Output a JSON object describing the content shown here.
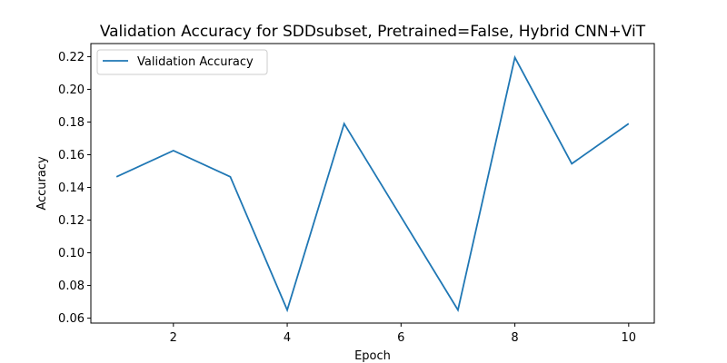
{
  "chart_data": {
    "type": "line",
    "title": "Validation Accuracy for SDDsubset, Pretrained=False, Hybrid CNN+ViT",
    "xlabel": "Epoch",
    "ylabel": "Accuracy",
    "xlim": [
      0.55,
      10.45
    ],
    "ylim": [
      0.057,
      0.228
    ],
    "xticks": [
      2,
      4,
      6,
      8,
      10
    ],
    "xtick_labels": [
      "2",
      "4",
      "6",
      "8",
      "10"
    ],
    "yticks": [
      0.06,
      0.08,
      0.1,
      0.12,
      0.14,
      0.16,
      0.18,
      0.2,
      0.22
    ],
    "ytick_labels": [
      "0.06",
      "0.08",
      "0.10",
      "0.12",
      "0.14",
      "0.16",
      "0.18",
      "0.20",
      "0.22"
    ],
    "grid": false,
    "legend_position": "top-left",
    "series": [
      {
        "name": "Validation Accuracy",
        "color": "#1f77b4",
        "x": [
          1,
          2,
          3,
          4,
          5,
          6,
          7,
          8,
          9,
          10
        ],
        "y": [
          0.1465,
          0.1625,
          0.1465,
          0.065,
          0.179,
          0.122,
          0.065,
          0.2195,
          0.1545,
          0.179
        ]
      }
    ]
  }
}
